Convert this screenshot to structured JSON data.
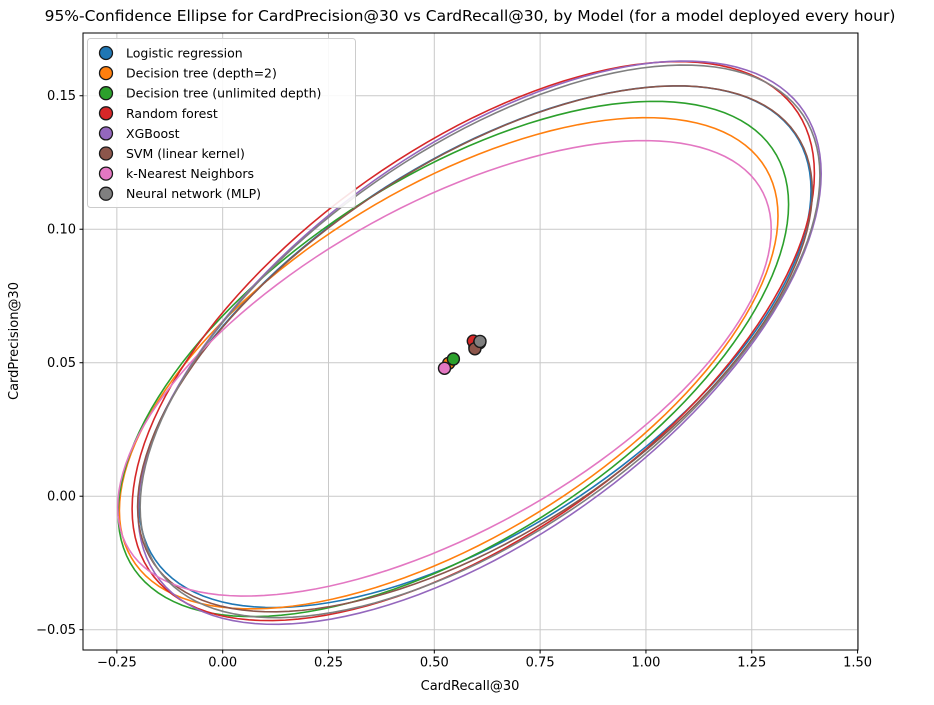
{
  "title": "95%-Confidence Ellipse for CardPrecision@30 vs CardRecall@30, by Model (for a model deployed every hour)",
  "chart_data": {
    "type": "scatter",
    "subtype": "confidence-ellipses",
    "confidence_level": "95%",
    "title": "95%-Confidence Ellipse for CardPrecision@30 vs CardRecall@30, by Model (for a model deployed every hour)",
    "xlabel": "CardRecall@30",
    "ylabel": "CardPrecision@30",
    "xlim": [
      -0.33,
      1.501
    ],
    "ylim": [
      -0.0576,
      0.1735
    ],
    "grid": true,
    "legend_position": "upper-left",
    "x_ticks": {
      "values": [
        -0.25,
        0.0,
        0.25,
        0.5,
        0.75,
        1.0,
        1.25,
        1.5
      ],
      "labels": [
        "−0.25",
        "0.00",
        "0.25",
        "0.50",
        "0.75",
        "1.00",
        "1.25",
        "1.50"
      ]
    },
    "y_ticks": {
      "values": [
        -0.05,
        0.0,
        0.05,
        0.1,
        0.15
      ],
      "labels": [
        "−0.05",
        "0.00",
        "0.05",
        "0.10",
        "0.15"
      ]
    },
    "models": [
      {
        "name": "Logistic regression",
        "color": "#1f77b4",
        "mean": [
          0.596,
          0.056
        ],
        "ellipse": {
          "half_width": 0.794,
          "half_height": 0.0977,
          "corr": 0.6
        }
      },
      {
        "name": "Decision tree (depth=2)",
        "color": "#ff7f0e",
        "mean": [
          0.534,
          0.0498
        ],
        "ellipse": {
          "half_width": 0.778,
          "half_height": 0.092,
          "corr": 0.6
        }
      },
      {
        "name": "Decision tree (unlimited depth)",
        "color": "#2ca02c",
        "mean": [
          0.545,
          0.0514
        ],
        "ellipse": {
          "half_width": 0.792,
          "half_height": 0.0965,
          "corr": 0.6
        }
      },
      {
        "name": "Random forest",
        "color": "#d62728",
        "mean": [
          0.592,
          0.0581
        ],
        "ellipse": {
          "half_width": 0.806,
          "half_height": 0.1047,
          "corr": 0.6
        }
      },
      {
        "name": "XGBoost",
        "color": "#9467bd",
        "mean": [
          0.607,
          0.0575
        ],
        "ellipse": {
          "half_width": 0.807,
          "half_height": 0.1055,
          "corr": 0.6
        }
      },
      {
        "name": "SVM (linear kernel)",
        "color": "#8c564b",
        "mean": [
          0.596,
          0.0552
        ],
        "ellipse": {
          "half_width": 0.797,
          "half_height": 0.0985,
          "corr": 0.6
        }
      },
      {
        "name": "k-Nearest Neighbors",
        "color": "#e377c2",
        "mean": [
          0.524,
          0.0479
        ],
        "ellipse": {
          "half_width": 0.772,
          "half_height": 0.0853,
          "corr": 0.61
        }
      },
      {
        "name": "Neural network (MLP)",
        "color": "#7f7f7f",
        "mean": [
          0.608,
          0.058
        ],
        "ellipse": {
          "half_width": 0.803,
          "half_height": 0.1035,
          "corr": 0.6
        }
      }
    ]
  },
  "style": {
    "grid_color": "#c9c9c9",
    "spine_color": "#000000",
    "marker_edge_color": "#1a1a1a",
    "legend_border_color": "#cccccc",
    "legend_bg_color": "rgba(255,255,255,0.88)"
  }
}
